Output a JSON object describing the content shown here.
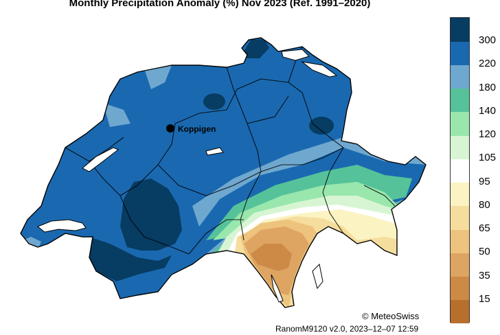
{
  "title": "Monthly Precipitation Anomaly (%) Nov 2023  (Ref. 1991–2020)",
  "station": {
    "name": "Koppigen"
  },
  "legend": {
    "labels": [
      "15",
      "35",
      "50",
      "65",
      "80",
      "95",
      "105",
      "120",
      "140",
      "180",
      "220",
      "300"
    ],
    "colors": [
      "#b76f2b",
      "#cd8a47",
      "#dea462",
      "#edc37e",
      "#f5de9d",
      "#fbf3c2",
      "#ffffff",
      "#d7f5d3",
      "#99e7ad",
      "#56c29a",
      "#6fa8cf",
      "#1a69b0",
      "#073c63"
    ]
  },
  "copyright": "© MeteoSwiss",
  "version": "RanomM9120 v2.0, 2023–12–07 12:59"
}
